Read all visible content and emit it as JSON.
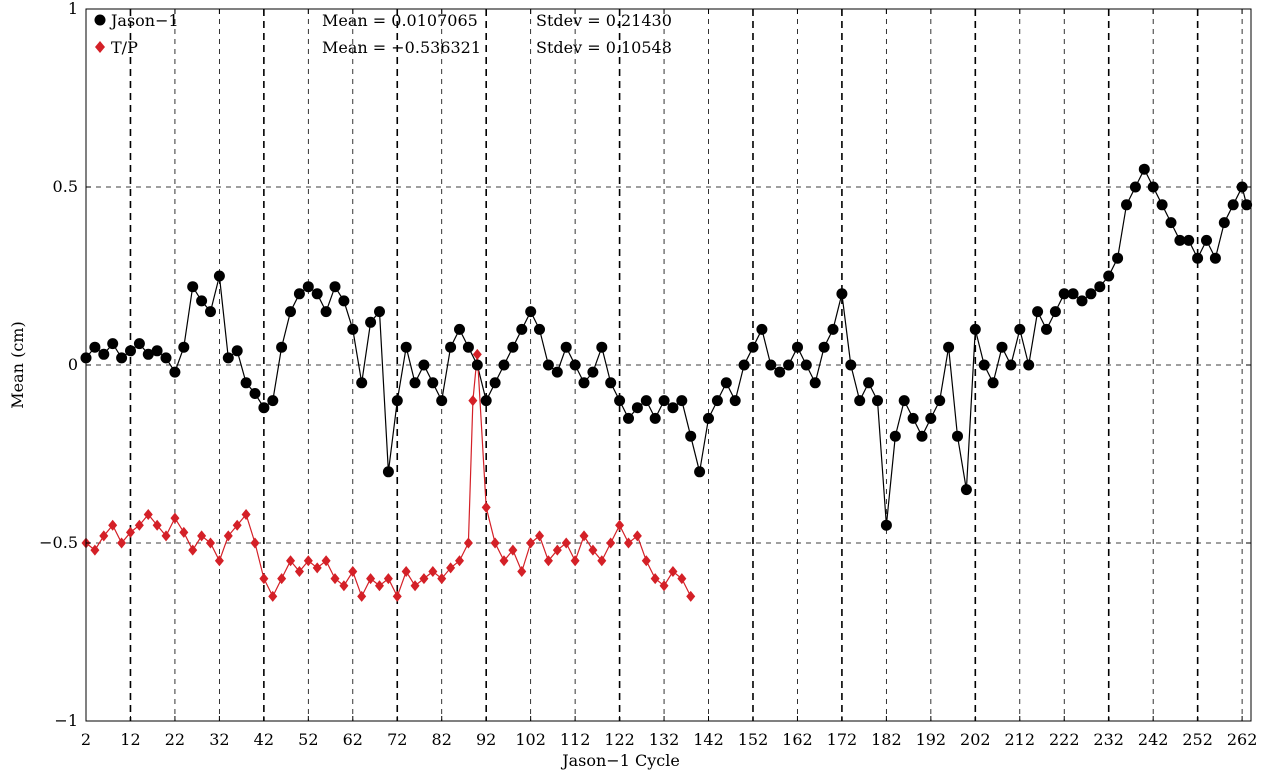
{
  "chart_data": {
    "type": "scatter",
    "xlabel": "Jason−1 Cycle",
    "ylabel": "Mean (cm)",
    "xlim": [
      2,
      264
    ],
    "ylim": [
      -1,
      1
    ],
    "x_ticks": [
      2,
      12,
      22,
      32,
      42,
      52,
      62,
      72,
      82,
      92,
      102,
      112,
      122,
      132,
      142,
      152,
      162,
      172,
      182,
      192,
      202,
      212,
      222,
      232,
      242,
      252,
      262
    ],
    "x_tick_labels": [
      "2",
      "12",
      "22",
      "32",
      "42",
      "52",
      "62",
      "72",
      "82",
      "92",
      "102",
      "112",
      "122",
      "132",
      "142",
      "152",
      "162",
      "172",
      "182",
      "192",
      "202",
      "212",
      "222",
      "232",
      "242",
      "252",
      "262"
    ],
    "y_ticks": [
      -1,
      -0.5,
      0,
      0.5,
      1
    ],
    "y_tick_labels": [
      "−1",
      "−0.5",
      "0",
      "0.5",
      "1"
    ],
    "major_gridlines_x": [
      12,
      42,
      72,
      92,
      122,
      152,
      172,
      202,
      232,
      252
    ],
    "grid": true,
    "legend_position": "top-left",
    "series": [
      {
        "name": "Jason−1",
        "color": "#000000",
        "marker": "circle",
        "x": [
          2,
          4,
          6,
          8,
          10,
          12,
          14,
          16,
          18,
          20,
          22,
          24,
          26,
          28,
          30,
          32,
          34,
          36,
          38,
          40,
          42,
          44,
          46,
          48,
          50,
          52,
          54,
          56,
          58,
          60,
          62,
          64,
          66,
          68,
          70,
          72,
          74,
          76,
          78,
          80,
          82,
          84,
          86,
          88,
          90,
          92,
          94,
          96,
          98,
          100,
          102,
          104,
          106,
          108,
          110,
          112,
          114,
          116,
          118,
          120,
          122,
          124,
          126,
          128,
          130,
          132,
          134,
          136,
          138,
          140,
          142,
          144,
          146,
          148,
          150,
          152,
          154,
          156,
          158,
          160,
          162,
          164,
          166,
          168,
          170,
          172,
          174,
          176,
          178,
          180,
          182,
          184,
          186,
          188,
          190,
          192,
          194,
          196,
          198,
          200,
          202,
          204,
          206,
          208,
          210,
          212,
          214,
          216,
          218,
          220,
          222,
          224,
          226,
          228,
          230,
          232,
          234,
          236,
          238,
          240,
          242,
          244,
          246,
          248,
          250,
          252,
          254,
          256,
          258,
          260,
          262,
          263
        ],
        "values": [
          0.02,
          0.05,
          0.03,
          0.06,
          0.02,
          0.04,
          0.06,
          0.03,
          0.04,
          0.02,
          -0.02,
          0.05,
          0.22,
          0.18,
          0.15,
          0.25,
          0.02,
          0.04,
          -0.05,
          -0.08,
          -0.12,
          -0.1,
          0.05,
          0.15,
          0.2,
          0.22,
          0.2,
          0.15,
          0.22,
          0.18,
          0.1,
          -0.05,
          0.12,
          0.15,
          -0.3,
          -0.1,
          0.05,
          -0.05,
          0.0,
          -0.05,
          -0.1,
          0.05,
          0.1,
          0.05,
          0.0,
          -0.1,
          -0.05,
          0.0,
          0.05,
          0.1,
          0.15,
          0.1,
          0.0,
          -0.02,
          0.05,
          0.0,
          -0.05,
          -0.02,
          0.05,
          -0.05,
          -0.1,
          -0.15,
          -0.12,
          -0.1,
          -0.15,
          -0.1,
          -0.12,
          -0.1,
          -0.2,
          -0.3,
          -0.15,
          -0.1,
          -0.05,
          -0.1,
          0.0,
          0.05,
          0.1,
          0.0,
          -0.02,
          0.0,
          0.05,
          0.0,
          -0.05,
          0.05,
          0.1,
          0.2,
          0.0,
          -0.1,
          -0.05,
          -0.1,
          -0.45,
          -0.2,
          -0.1,
          -0.15,
          -0.2,
          -0.15,
          -0.1,
          0.05,
          -0.2,
          -0.35,
          0.1,
          0.0,
          -0.05,
          0.05,
          0.0,
          0.1,
          0.0,
          0.15,
          0.1,
          0.15,
          0.2,
          0.2,
          0.18,
          0.2,
          0.22,
          0.25,
          0.3,
          0.45,
          0.5,
          0.55,
          0.5,
          0.45,
          0.4,
          0.35,
          0.35,
          0.3,
          0.35,
          0.3,
          0.4,
          0.45,
          0.5,
          0.45
        ]
      },
      {
        "name": "T/P",
        "color": "#d42027",
        "marker": "diamond",
        "x": [
          2,
          4,
          6,
          8,
          10,
          12,
          14,
          16,
          18,
          20,
          22,
          24,
          26,
          28,
          30,
          32,
          34,
          36,
          38,
          40,
          42,
          44,
          46,
          48,
          50,
          52,
          54,
          56,
          58,
          60,
          62,
          64,
          66,
          68,
          70,
          72,
          74,
          76,
          78,
          80,
          82,
          84,
          86,
          88,
          89,
          90,
          92,
          94,
          96,
          98,
          100,
          102,
          104,
          106,
          108,
          110,
          112,
          114,
          116,
          118,
          120,
          122,
          124,
          126,
          128,
          130,
          132,
          134,
          136,
          138
        ],
        "values": [
          -0.5,
          -0.52,
          -0.48,
          -0.45,
          -0.5,
          -0.47,
          -0.45,
          -0.42,
          -0.45,
          -0.48,
          -0.43,
          -0.47,
          -0.52,
          -0.48,
          -0.5,
          -0.55,
          -0.48,
          -0.45,
          -0.42,
          -0.5,
          -0.6,
          -0.65,
          -0.6,
          -0.55,
          -0.58,
          -0.55,
          -0.57,
          -0.55,
          -0.6,
          -0.62,
          -0.58,
          -0.65,
          -0.6,
          -0.62,
          -0.6,
          -0.65,
          -0.58,
          -0.62,
          -0.6,
          -0.58,
          -0.6,
          -0.57,
          -0.55,
          -0.5,
          -0.1,
          0.03,
          -0.4,
          -0.5,
          -0.55,
          -0.52,
          -0.58,
          -0.5,
          -0.48,
          -0.55,
          -0.52,
          -0.5,
          -0.55,
          -0.48,
          -0.52,
          -0.55,
          -0.5,
          -0.45,
          -0.5,
          -0.48,
          -0.55,
          -0.6,
          -0.62,
          -0.58,
          -0.6,
          -0.65
        ]
      }
    ],
    "annotations": [
      {
        "label": "Mean = 0.0107065",
        "series": "Jason−1"
      },
      {
        "label": "Stdev = 0.21430",
        "series": "Jason−1"
      },
      {
        "label": "Mean = −0.536321",
        "series": "T/P"
      },
      {
        "label": "Stdev = 0.10548",
        "series": "T/P"
      }
    ]
  }
}
